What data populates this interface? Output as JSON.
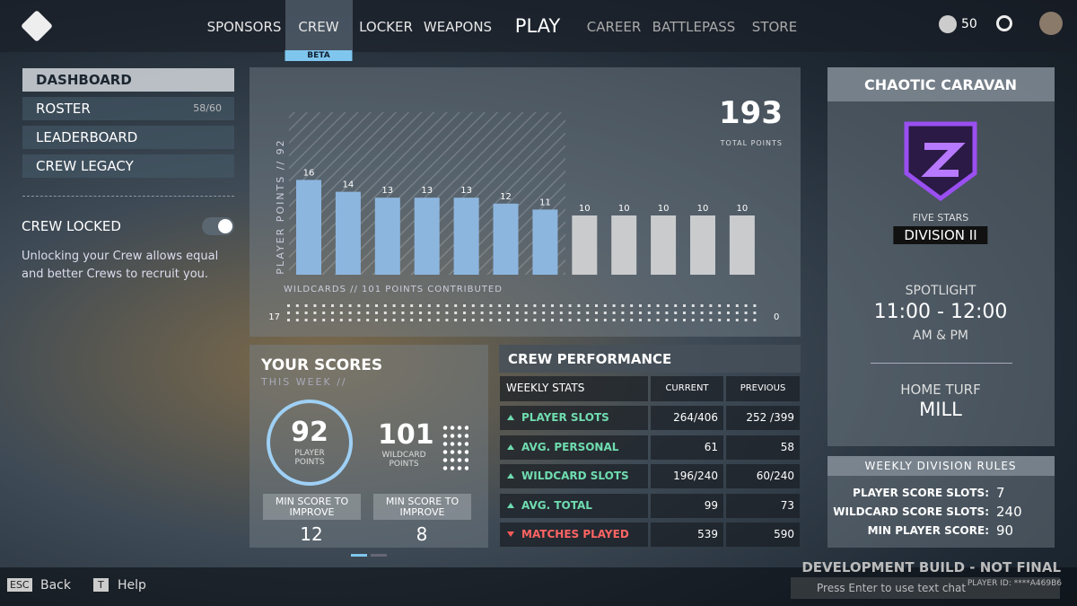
{
  "nav": {
    "items": [
      "SPONSORS",
      "CREW",
      "LOCKER",
      "WEAPONS"
    ],
    "badge": "BETA",
    "play": "PLAY",
    "locked_items": [
      "CAREER",
      "BATTLEPASS",
      "STORE"
    ],
    "currency": "50"
  },
  "sidebar": {
    "menu": [
      "DASHBOARD",
      "ROSTER",
      "LEADERBOARD",
      "CREW LEGACY"
    ],
    "roster_count": "58/60",
    "crew_locked": "CREW LOCKED",
    "description": "Unlocking your Crew allows equal and better Crews to recruit you."
  },
  "points_chart": {
    "total": 193,
    "total_label": "TOTAL POINTS",
    "axis_label": "PLAYER POINTS // 92",
    "values": [
      16,
      14,
      13,
      13,
      13,
      12,
      11,
      10,
      10,
      10,
      10,
      10
    ],
    "colors": [
      "#8db6df",
      "#8db6df",
      "#8db6df",
      "#8db6df",
      "#8db6df",
      "#8db6df",
      "#8db6df",
      "#c9cbcd",
      "#c9cbcd",
      "#c9cbcd",
      "#c9cbcd",
      "#c9cbcd"
    ],
    "ylim": [
      0,
      20
    ],
    "wildcards_label": "WILDCARDS // 101 POINTS CONTRIBUTED",
    "wildcards_start": "17",
    "wildcards_end": "0"
  },
  "your_scores": {
    "title": "YOUR SCORES",
    "subtitle": "THIS WEEK //",
    "player_points": "92",
    "player_points_label": "PLAYER POINTS",
    "wildcard_points": "101",
    "wildcard_points_label": "WILDCARD POINTS",
    "min_label": "MIN SCORE TO IMPROVE",
    "min_player": "12",
    "min_wildcard": "8"
  },
  "crew_performance": {
    "title": "CREW PERFORMANCE",
    "headers": [
      "WEEKLY STATS",
      "CURRENT",
      "PREVIOUS"
    ],
    "rows": [
      [
        "PLAYER SLOTS",
        "264/406",
        "252 /399"
      ],
      [
        "AVG. PERSONAL",
        "61",
        "58"
      ],
      [
        "WILDCARD SLOTS",
        "196/240",
        "60/240"
      ],
      [
        "AVG. TOTAL",
        "99",
        "73"
      ],
      [
        "MATCHES PLAYED",
        "539",
        "590"
      ]
    ]
  },
  "division": {
    "title": "CHAOTIC CARAVAN",
    "rank": "FIVE STARS",
    "division": "DIVISION II",
    "spotlight": "SPOTLIGHT",
    "time": "11:00 - 12:00",
    "period": "AM & PM",
    "home_turf_label": "HOME TURF",
    "home_turf": "MILL"
  },
  "rules": {
    "title": "WEEKLY DIVISION RULES",
    "items": [
      [
        "PLAYER SCORE SLOTS:",
        "7"
      ],
      [
        "WILDCARD SCORE SLOTS:",
        "240"
      ],
      [
        "MIN PLAYER SCORE:",
        "90"
      ]
    ]
  },
  "footer": {
    "esc": "ESC",
    "back": "Back",
    "t": "T",
    "help": "Help",
    "build": "DEVELOPMENT BUILD - NOT FINAL",
    "chat": "Press Enter to use text chat",
    "player_id": "PLAYER ID: ****A469B6"
  }
}
